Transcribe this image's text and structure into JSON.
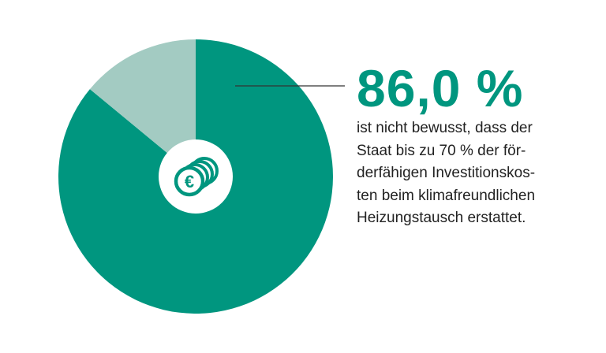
{
  "colors": {
    "primary": "#00967f",
    "secondary": "#a3cbc2",
    "leader_line": "#333333",
    "text": "#222222",
    "background": "#ffffff"
  },
  "icon": "euro-coins-icon",
  "chart_data": {
    "type": "pie",
    "slices": [
      {
        "label": "nicht bewusst",
        "value": 86.0,
        "color": "#00967f"
      },
      {
        "label": "bewusst",
        "value": 14.0,
        "color": "#a3cbc2"
      }
    ],
    "start_angle_deg": 0,
    "direction": "clockwise",
    "legend": "none",
    "annotation": {
      "value_text": "86,0 %",
      "description_lines": [
        "ist nicht bewusst, dass der",
        "Staat bis zu 70 % der för-",
        "derfähigen Investitionskos-",
        "ten beim klimafreundlichen",
        "Heizungstausch erstattet."
      ]
    }
  }
}
